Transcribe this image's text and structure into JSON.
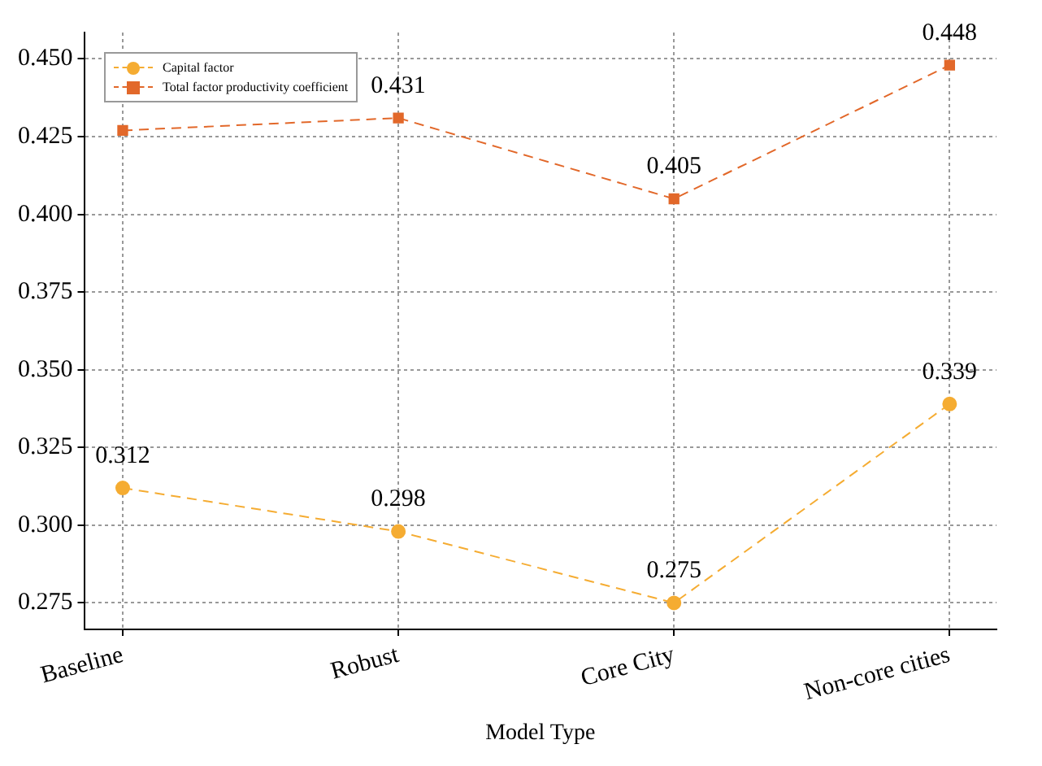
{
  "chart_data": {
    "type": "line",
    "xlabel": "Model Type",
    "categories": [
      "Baseline",
      "Robust",
      "Core City",
      "Non-core cities"
    ],
    "series": [
      {
        "name": "Capital factor",
        "color": "#f5ac32",
        "values": [
          0.312,
          0.298,
          0.275,
          0.339
        ],
        "value_labels": [
          "0.312",
          "0.298",
          "0.275",
          "0.339"
        ],
        "marker": "circle"
      },
      {
        "name": "Total factor productivity coefficient",
        "color": "#e2682a",
        "values": [
          0.427,
          0.431,
          0.405,
          0.448
        ],
        "value_labels": [
          null,
          "0.431",
          "0.405",
          "0.448"
        ],
        "marker": "square"
      }
    ],
    "ylim": [
      0.2665,
      0.4585
    ],
    "yticks": [
      0.275,
      {
        "value": 0.3,
        "label": "0.300"
      },
      0.325,
      {
        "value": 0.35,
        "label": "0.350"
      },
      0.375,
      {
        "value": 0.4,
        "label": "0.400"
      },
      0.425,
      {
        "value": 0.45,
        "label": "0.450"
      }
    ],
    "grid": true,
    "legend": "top left",
    "line_style": "dashed"
  }
}
